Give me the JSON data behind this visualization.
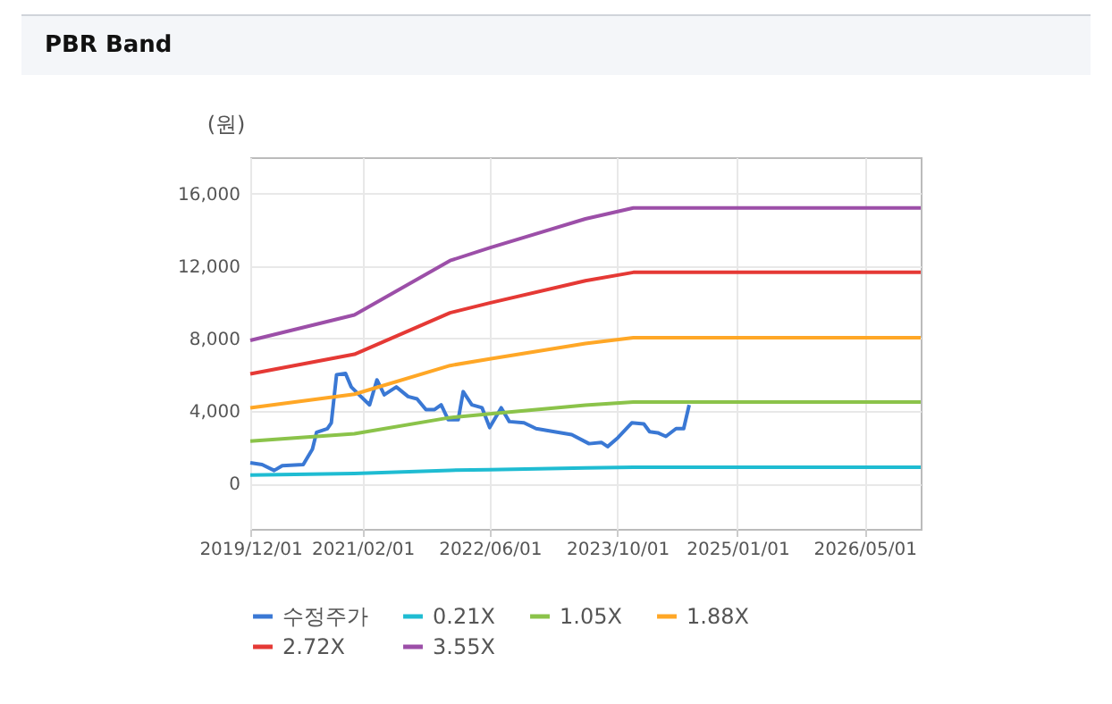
{
  "chart_data": {
    "type": "line",
    "title": "PBR Band",
    "ylabel": "(원)",
    "xlim": [
      "2019-12-01",
      "2026-12-01"
    ],
    "xticks": [
      {
        "value": "2019-12-01",
        "label": "2019/12/01"
      },
      {
        "value": "2021-02-01",
        "label": "2021/02/01"
      },
      {
        "value": "2022-06-01",
        "label": "2022/06/01"
      },
      {
        "value": "2023-10-01",
        "label": "2023/10/01"
      },
      {
        "value": "2025-01-01",
        "label": "2025/01/01"
      },
      {
        "value": "2026-05-01",
        "label": "2026/05/01"
      }
    ],
    "ylim": [
      -2500,
      18000
    ],
    "yticks": [
      {
        "value": 0,
        "label": "0"
      },
      {
        "value": 4000,
        "label": "4,000"
      },
      {
        "value": 8000,
        "label": "8,000"
      },
      {
        "value": 12000,
        "label": "12,000"
      },
      {
        "value": 16000,
        "label": "16,000"
      }
    ],
    "grid": true,
    "legend": "bottom",
    "marker": "none",
    "line_style": "solid",
    "series": [
      {
        "name": "수정주가",
        "color": "#3a78d4",
        "x": [
          "2019-12-01",
          "2020-01-15",
          "2020-03-01",
          "2020-04-01",
          "2020-06-20",
          "2020-07-25",
          "2020-08-10",
          "2020-09-20",
          "2020-10-05",
          "2020-10-25",
          "2020-11-28",
          "2020-12-20",
          "2021-01-12",
          "2021-02-28",
          "2021-03-28",
          "2021-04-25",
          "2021-06-10",
          "2021-07-25",
          "2021-08-28",
          "2021-10-01",
          "2021-11-03",
          "2021-11-28",
          "2021-12-25",
          "2022-02-01",
          "2022-02-20",
          "2022-03-25",
          "2022-05-03",
          "2022-06-01",
          "2022-07-15",
          "2022-08-15",
          "2022-10-10",
          "2022-11-25",
          "2023-02-03",
          "2023-04-10",
          "2023-06-15",
          "2023-08-01",
          "2023-08-25",
          "2023-10-03",
          "2023-11-25",
          "2024-01-10",
          "2024-02-01",
          "2024-03-03",
          "2024-04-03",
          "2024-05-12",
          "2024-06-10",
          "2024-07-01"
        ],
        "values": [
          1150,
          1050,
          720,
          990,
          1050,
          1900,
          2830,
          3030,
          3350,
          6000,
          6080,
          5330,
          5000,
          4340,
          5720,
          4900,
          5330,
          4800,
          4670,
          4080,
          4080,
          4340,
          3520,
          3520,
          5070,
          4340,
          4180,
          3090,
          4180,
          3420,
          3350,
          3030,
          2860,
          2700,
          2200,
          2270,
          2040,
          2530,
          3350,
          3290,
          2860,
          2800,
          2600,
          3030,
          3030,
          4340
        ]
      },
      {
        "name": "0.21X",
        "color": "#1fbcd2",
        "x": [
          "2019-12-01",
          "2021-01-01",
          "2022-01-01",
          "2022-06-01",
          "2023-06-01",
          "2023-12-01",
          "2026-12-01"
        ],
        "values": [
          470,
          550,
          730,
          770,
          860,
          900,
          900
        ]
      },
      {
        "name": "1.05X",
        "color": "#8bc34a",
        "x": [
          "2019-12-01",
          "2021-01-01",
          "2022-01-01",
          "2022-06-01",
          "2023-06-01",
          "2023-12-01",
          "2026-12-01"
        ],
        "values": [
          2340,
          2750,
          3640,
          3840,
          4320,
          4500,
          4500
        ]
      },
      {
        "name": "1.88X",
        "color": "#ffa726",
        "x": [
          "2019-12-01",
          "2021-01-01",
          "2022-01-01",
          "2022-06-01",
          "2023-06-01",
          "2023-12-01",
          "2026-12-01"
        ],
        "values": [
          4180,
          4930,
          6510,
          6880,
          7730,
          8050,
          8050
        ]
      },
      {
        "name": "2.72X",
        "color": "#e53935",
        "x": [
          "2019-12-01",
          "2021-01-01",
          "2022-01-01",
          "2022-06-01",
          "2023-06-01",
          "2023-12-01",
          "2026-12-01"
        ],
        "values": [
          6050,
          7130,
          9420,
          9960,
          11190,
          11650,
          11650
        ]
      },
      {
        "name": "3.55X",
        "color": "#9c4fa8",
        "x": [
          "2019-12-01",
          "2021-01-01",
          "2022-01-01",
          "2022-06-01",
          "2023-06-01",
          "2023-12-01",
          "2026-12-01"
        ],
        "values": [
          7900,
          9300,
          12300,
          13000,
          14600,
          15200,
          15200
        ]
      }
    ]
  }
}
